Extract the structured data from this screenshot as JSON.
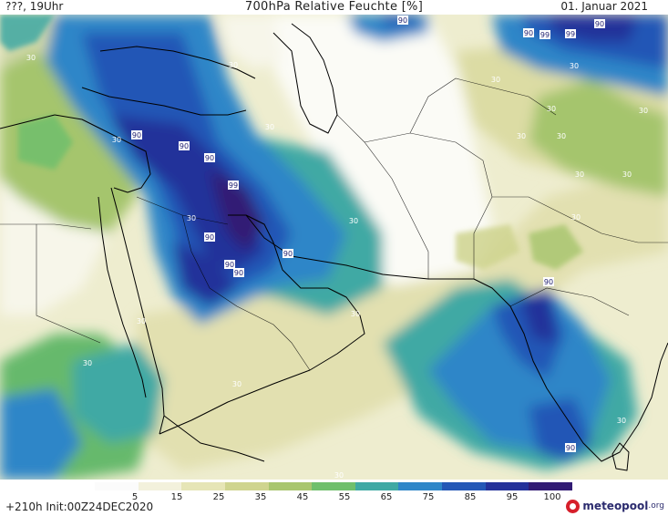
{
  "header": {
    "left": "???, 19Uhr",
    "title": "700hPa Relative Feuchte [%]",
    "date": "01. Januar 2021"
  },
  "colorbar": {
    "labels": [
      "5",
      "15",
      "25",
      "35",
      "45",
      "55",
      "65",
      "75",
      "85",
      "95",
      "100"
    ],
    "colors": [
      "#fbfbfb",
      "#f3f1dc",
      "#e6e5b6",
      "#cfd48f",
      "#a9c66f",
      "#6fbf6c",
      "#3fa9a4",
      "#2e86c8",
      "#2457b6",
      "#24319a",
      "#311b74"
    ]
  },
  "footer": {
    "run": "+210h Init:00Z24DEC2020",
    "brand": "meteopool",
    "tld": ".org"
  },
  "map_labels": [
    {
      "text": "90",
      "tone": "dark"
    },
    {
      "text": "90",
      "tone": "dark"
    },
    {
      "text": "99",
      "tone": "dark"
    },
    {
      "text": "99",
      "tone": "dark"
    },
    {
      "text": "90",
      "tone": "dark"
    },
    {
      "text": "30",
      "tone": "light"
    },
    {
      "text": "30",
      "tone": "light"
    },
    {
      "text": "30",
      "tone": "light"
    },
    {
      "text": "30",
      "tone": "light"
    },
    {
      "text": "90",
      "tone": "dark"
    },
    {
      "text": "90",
      "tone": "dark"
    },
    {
      "text": "90",
      "tone": "dark"
    },
    {
      "text": "99",
      "tone": "dark"
    },
    {
      "text": "30",
      "tone": "light"
    },
    {
      "text": "30",
      "tone": "light"
    },
    {
      "text": "90",
      "tone": "dark"
    },
    {
      "text": "90",
      "tone": "dark"
    },
    {
      "text": "90",
      "tone": "dark"
    },
    {
      "text": "90",
      "tone": "dark"
    },
    {
      "text": "30",
      "tone": "light"
    },
    {
      "text": "30",
      "tone": "light"
    },
    {
      "text": "30",
      "tone": "light"
    },
    {
      "text": "30",
      "tone": "light"
    },
    {
      "text": "30",
      "tone": "light"
    },
    {
      "text": "30",
      "tone": "light"
    },
    {
      "text": "30",
      "tone": "light"
    },
    {
      "text": "30",
      "tone": "light"
    },
    {
      "text": "30",
      "tone": "light"
    },
    {
      "text": "30",
      "tone": "light"
    },
    {
      "text": "30",
      "tone": "light"
    },
    {
      "text": "90",
      "tone": "dark"
    },
    {
      "text": "90",
      "tone": "dark"
    },
    {
      "text": "30",
      "tone": "light"
    },
    {
      "text": "30",
      "tone": "light"
    },
    {
      "text": "30",
      "tone": "light"
    },
    {
      "text": "30",
      "tone": "light"
    },
    {
      "text": "30",
      "tone": "light"
    }
  ]
}
